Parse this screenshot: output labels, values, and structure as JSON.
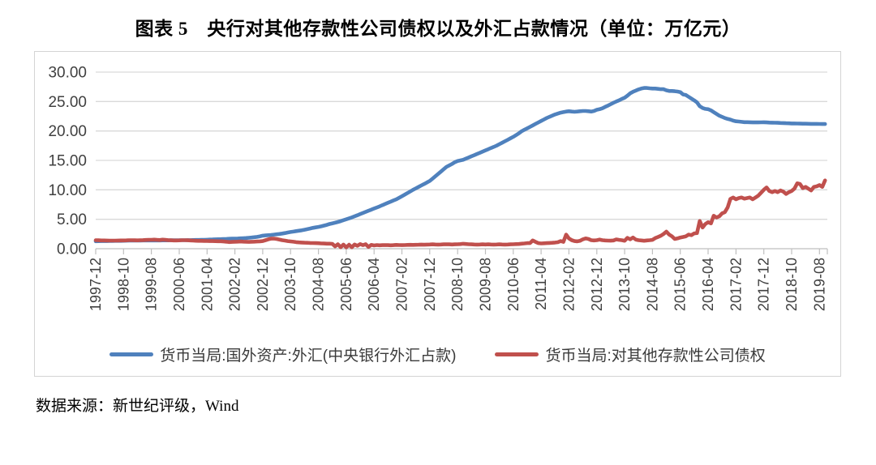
{
  "page": {
    "title": "图表 5　央行对其他存款性公司债权以及外汇占款情况（单位：万亿元）",
    "source": "数据来源：新世纪评级，Wind"
  },
  "chart_data": {
    "type": "line",
    "unit": "万亿元",
    "title": "央行对其他存款性公司债权以及外汇占款情况",
    "ylim": [
      0,
      30
    ],
    "y_ticks": [
      "0.00",
      "5.00",
      "10.00",
      "15.00",
      "20.00",
      "25.00",
      "30.00"
    ],
    "grid": "horizontal",
    "legend_position": "bottom",
    "x_start": "1997-12",
    "x_end": "2019-10",
    "x_frequency": "monthly",
    "x_tick_interval_months": 10,
    "x_tick_labels": [
      "1997-12",
      "1998-10",
      "1999-08",
      "2000-06",
      "2001-04",
      "2002-02",
      "2002-12",
      "2003-10",
      "2004-08",
      "2005-06",
      "2006-04",
      "2007-02",
      "2007-12",
      "2008-10",
      "2009-08",
      "2010-06",
      "2011-04",
      "2012-02",
      "2012-12",
      "2013-10",
      "2014-08",
      "2015-06",
      "2016-04",
      "2017-02",
      "2017-12",
      "2018-10",
      "2019-08"
    ],
    "series": [
      {
        "name": "货币当局:国外资产:外汇(中央银行外汇占款)",
        "color": "#4F81BD",
        "values": [
          1.27,
          1.28,
          1.29,
          1.3,
          1.3,
          1.31,
          1.32,
          1.33,
          1.33,
          1.34,
          1.35,
          1.36,
          1.37,
          1.38,
          1.38,
          1.39,
          1.39,
          1.4,
          1.4,
          1.4,
          1.41,
          1.41,
          1.41,
          1.41,
          1.42,
          1.42,
          1.42,
          1.43,
          1.43,
          1.44,
          1.44,
          1.45,
          1.45,
          1.46,
          1.46,
          1.47,
          1.48,
          1.49,
          1.5,
          1.52,
          1.53,
          1.55,
          1.57,
          1.59,
          1.61,
          1.63,
          1.65,
          1.67,
          1.69,
          1.7,
          1.72,
          1.74,
          1.76,
          1.79,
          1.82,
          1.86,
          1.9,
          1.95,
          2.01,
          2.1,
          2.21,
          2.25,
          2.3,
          2.34,
          2.39,
          2.45,
          2.51,
          2.58,
          2.66,
          2.75,
          2.83,
          2.9,
          2.98,
          3.05,
          3.13,
          3.22,
          3.32,
          3.43,
          3.54,
          3.62,
          3.7,
          3.8,
          3.92,
          4.05,
          4.2,
          4.31,
          4.42,
          4.54,
          4.68,
          4.84,
          5.0,
          5.15,
          5.31,
          5.5,
          5.69,
          5.88,
          6.07,
          6.26,
          6.45,
          6.63,
          6.82,
          7.01,
          7.2,
          7.4,
          7.6,
          7.8,
          8.0,
          8.2,
          8.4,
          8.66,
          8.92,
          9.19,
          9.46,
          9.73,
          10.0,
          10.25,
          10.5,
          10.75,
          11.0,
          11.25,
          11.5,
          11.9,
          12.3,
          12.7,
          13.1,
          13.5,
          13.9,
          14.15,
          14.4,
          14.7,
          14.9,
          15.0,
          15.1,
          15.3,
          15.5,
          15.7,
          15.9,
          16.1,
          16.3,
          16.5,
          16.7,
          16.9,
          17.1,
          17.3,
          17.5,
          17.75,
          18.0,
          18.25,
          18.5,
          18.75,
          19.0,
          19.3,
          19.6,
          19.95,
          20.2,
          20.45,
          20.7,
          20.95,
          21.2,
          21.45,
          21.7,
          21.95,
          22.2,
          22.4,
          22.6,
          22.8,
          22.95,
          23.1,
          23.2,
          23.3,
          23.35,
          23.3,
          23.25,
          23.3,
          23.35,
          23.4,
          23.4,
          23.35,
          23.3,
          23.4,
          23.6,
          23.7,
          23.85,
          24.1,
          24.3,
          24.55,
          24.8,
          25.0,
          25.2,
          25.45,
          25.65,
          26.0,
          26.4,
          26.65,
          26.85,
          27.05,
          27.2,
          27.3,
          27.3,
          27.25,
          27.2,
          27.2,
          27.15,
          27.1,
          27.1,
          26.9,
          26.8,
          26.8,
          26.75,
          26.7,
          26.6,
          26.2,
          26.1,
          25.8,
          25.5,
          25.2,
          24.85,
          24.2,
          23.9,
          23.75,
          23.7,
          23.5,
          23.2,
          22.9,
          22.6,
          22.4,
          22.2,
          22.05,
          21.94,
          21.75,
          21.65,
          21.6,
          21.55,
          21.5,
          21.5,
          21.48,
          21.46,
          21.45,
          21.45,
          21.47,
          21.48,
          21.45,
          21.43,
          21.41,
          21.4,
          21.38,
          21.36,
          21.34,
          21.32,
          21.3,
          21.28,
          21.27,
          21.26,
          21.25,
          21.24,
          21.23,
          21.22,
          21.21,
          21.2,
          21.2,
          21.19,
          21.18,
          21.18
        ]
      },
      {
        "name": "货币当局:对其他存款性公司债权",
        "color": "#C0504D",
        "values": [
          1.44,
          1.43,
          1.41,
          1.4,
          1.39,
          1.38,
          1.37,
          1.38,
          1.39,
          1.4,
          1.41,
          1.42,
          1.44,
          1.45,
          1.43,
          1.42,
          1.44,
          1.46,
          1.48,
          1.5,
          1.52,
          1.54,
          1.5,
          1.47,
          1.54,
          1.5,
          1.46,
          1.43,
          1.41,
          1.4,
          1.42,
          1.44,
          1.45,
          1.43,
          1.4,
          1.37,
          1.35,
          1.34,
          1.33,
          1.32,
          1.31,
          1.3,
          1.29,
          1.28,
          1.27,
          1.26,
          1.22,
          1.18,
          1.13,
          1.15,
          1.18,
          1.2,
          1.22,
          1.2,
          1.18,
          1.16,
          1.18,
          1.2,
          1.22,
          1.25,
          1.3,
          1.45,
          1.6,
          1.7,
          1.72,
          1.65,
          1.55,
          1.45,
          1.38,
          1.3,
          1.24,
          1.18,
          1.12,
          1.08,
          1.05,
          1.02,
          1.0,
          0.98,
          0.96,
          0.95,
          0.93,
          0.9,
          0.88,
          0.86,
          0.85,
          0.82,
          0.4,
          0.75,
          0.25,
          0.7,
          0.22,
          0.68,
          0.25,
          0.72,
          0.5,
          0.78,
          0.6,
          0.75,
          0.3,
          0.65,
          0.55,
          0.62,
          0.58,
          0.6,
          0.62,
          0.6,
          0.58,
          0.6,
          0.64,
          0.62,
          0.6,
          0.62,
          0.64,
          0.66,
          0.64,
          0.66,
          0.68,
          0.7,
          0.68,
          0.7,
          0.72,
          0.74,
          0.72,
          0.7,
          0.72,
          0.74,
          0.76,
          0.74,
          0.72,
          0.74,
          0.76,
          0.78,
          0.84,
          0.8,
          0.76,
          0.74,
          0.72,
          0.7,
          0.72,
          0.74,
          0.72,
          0.74,
          0.72,
          0.7,
          0.72,
          0.74,
          0.72,
          0.7,
          0.72,
          0.74,
          0.76,
          0.78,
          0.8,
          0.85,
          0.9,
          0.95,
          0.95,
          1.4,
          1.15,
          0.95,
          0.9,
          0.92,
          0.95,
          0.98,
          1.0,
          1.05,
          1.1,
          1.3,
          1.15,
          2.4,
          1.75,
          1.45,
          1.3,
          1.25,
          1.35,
          1.6,
          1.75,
          1.65,
          1.45,
          1.4,
          1.45,
          1.55,
          1.45,
          1.4,
          1.38,
          1.36,
          1.4,
          1.58,
          1.5,
          1.45,
          1.35,
          1.85,
          1.6,
          1.9,
          1.55,
          1.45,
          1.4,
          1.35,
          1.4,
          1.45,
          1.5,
          1.8,
          2.0,
          2.2,
          2.5,
          2.9,
          2.4,
          2.1,
          1.65,
          1.75,
          1.9,
          2.0,
          2.1,
          2.4,
          2.3,
          2.6,
          2.66,
          4.7,
          3.6,
          4.2,
          4.5,
          4.3,
          5.6,
          5.3,
          5.5,
          6.0,
          6.2,
          7.0,
          8.47,
          8.7,
          8.4,
          8.6,
          8.7,
          8.5,
          8.6,
          8.7,
          8.4,
          8.7,
          9.0,
          9.5,
          10.0,
          10.4,
          9.8,
          9.6,
          9.8,
          9.6,
          9.9,
          9.7,
          9.3,
          9.6,
          9.8,
          10.2,
          11.1,
          11.0,
          10.3,
          10.5,
          10.2,
          9.9,
          10.5,
          10.6,
          10.8,
          10.5,
          11.6
        ]
      }
    ]
  }
}
